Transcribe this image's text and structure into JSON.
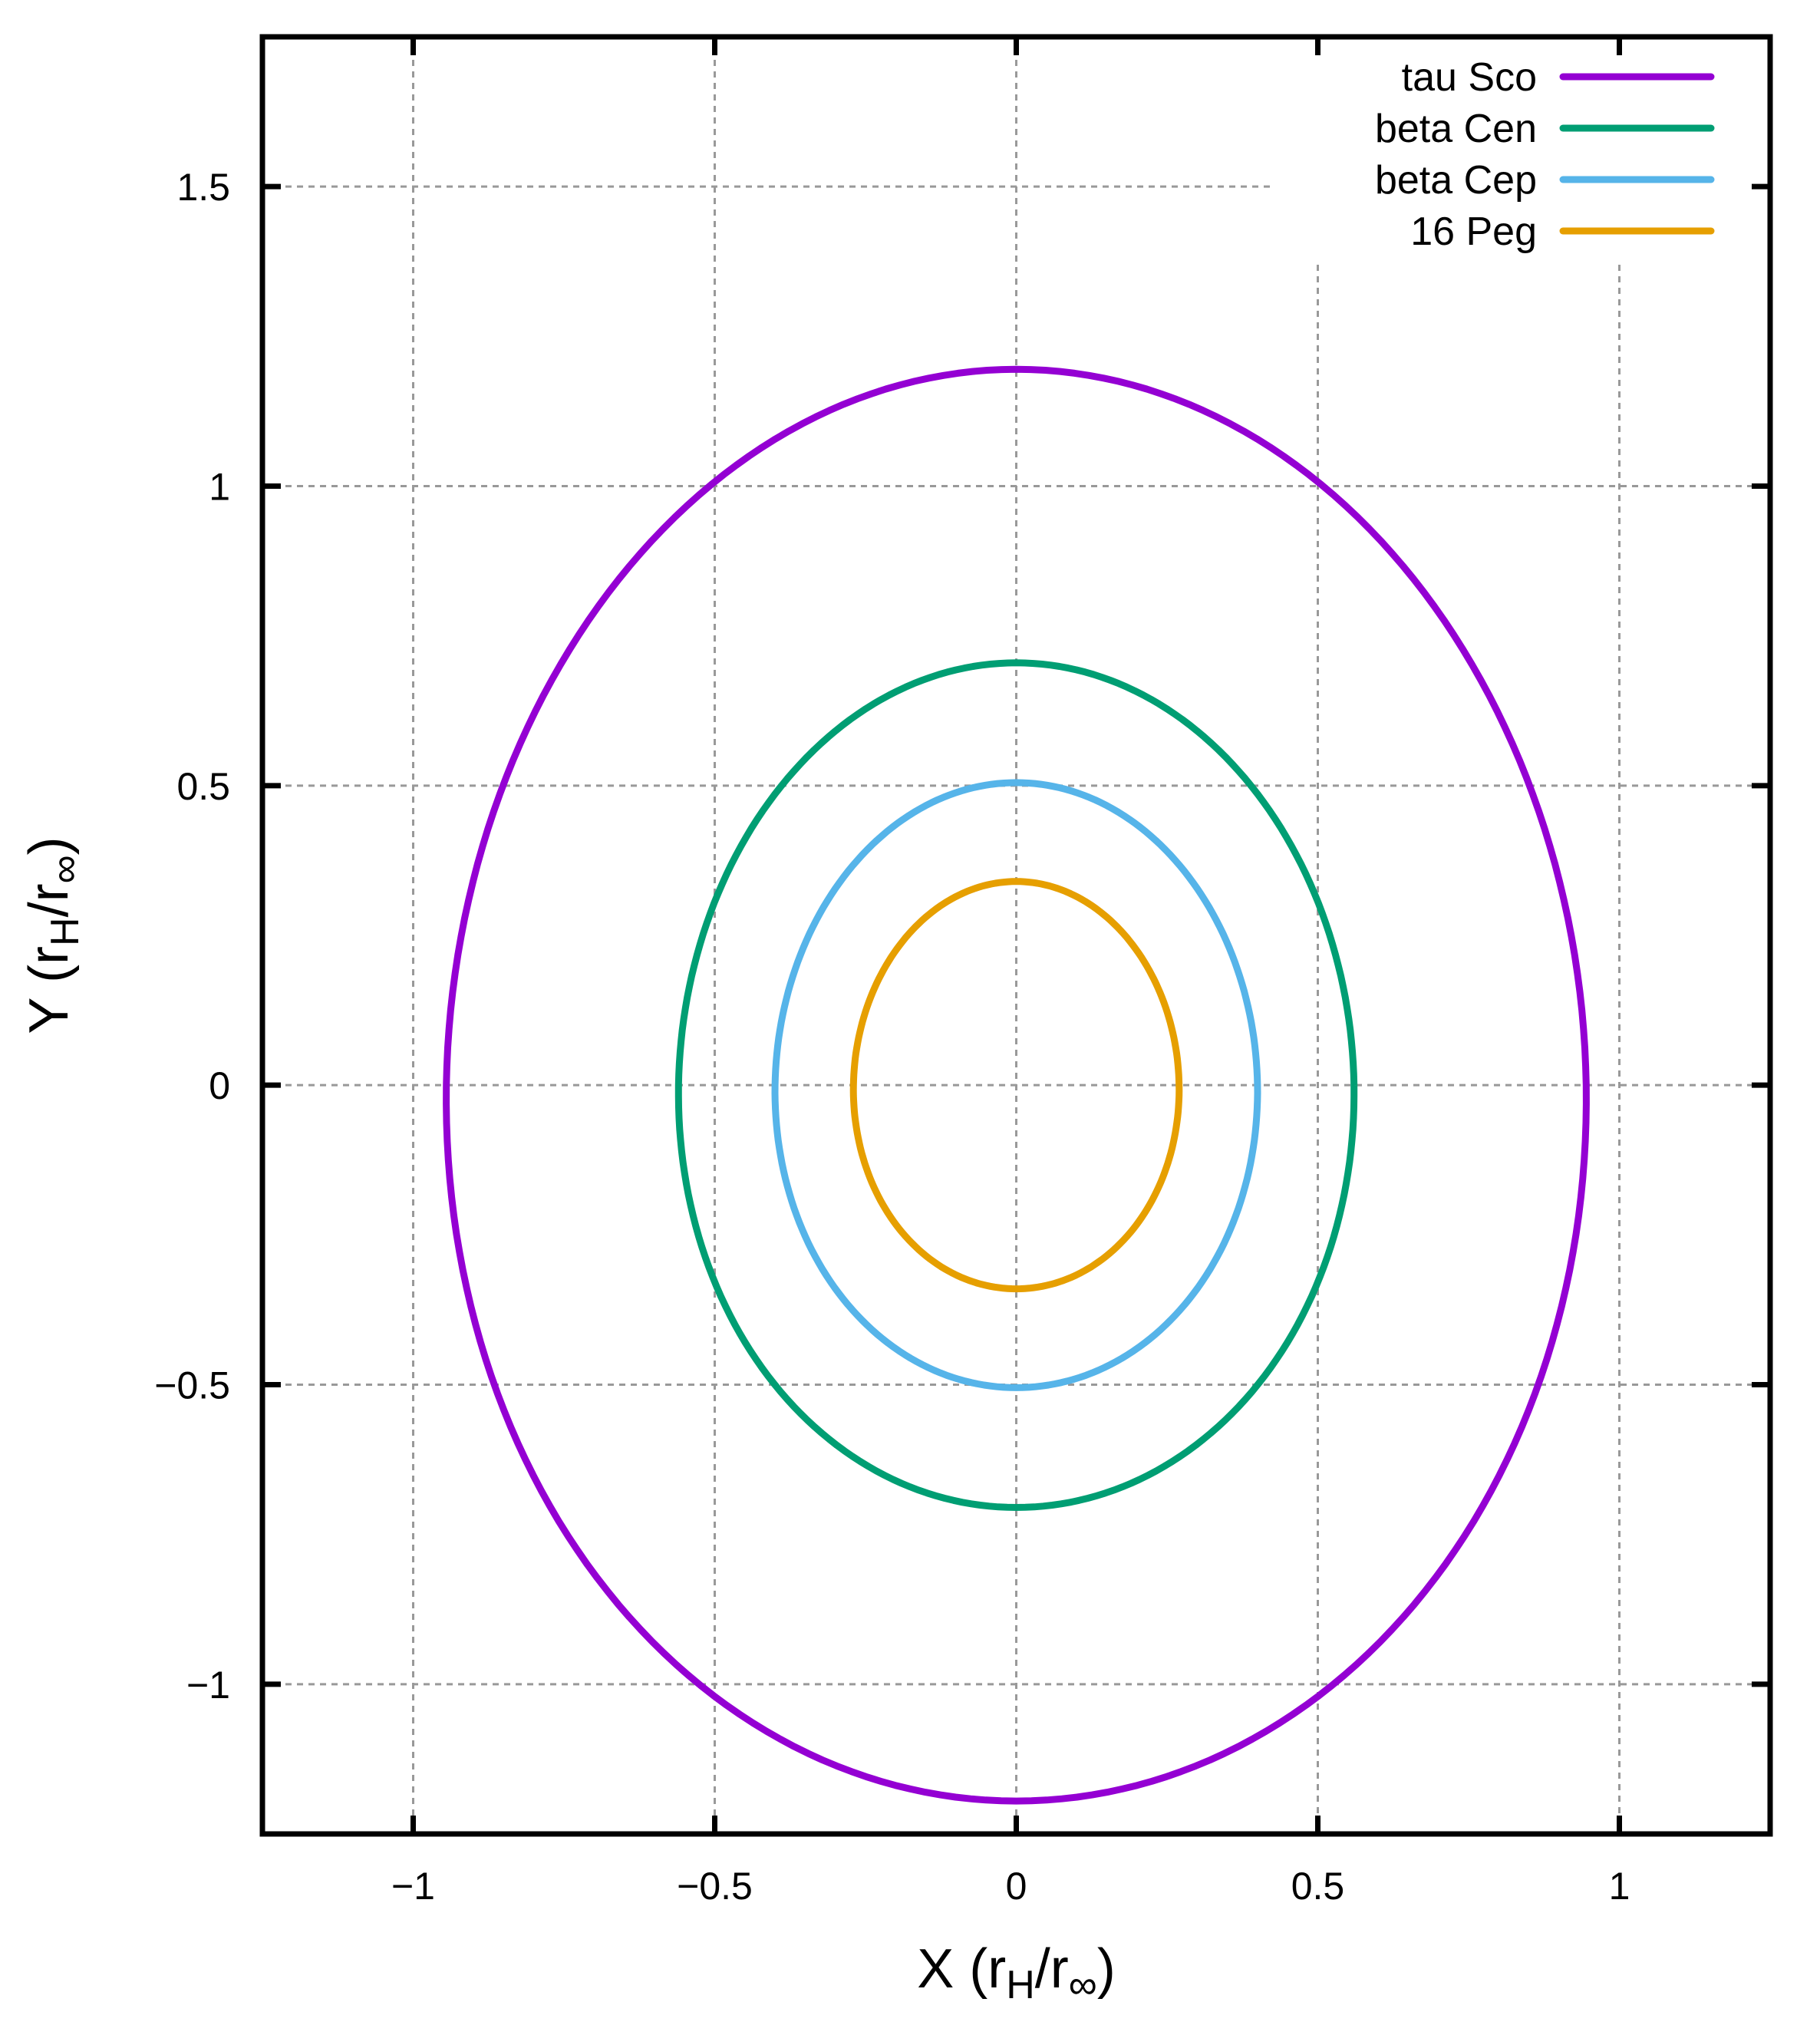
{
  "chart_data": {
    "type": "line",
    "xlabel": {
      "prefix": "X (r",
      "sub1": "H",
      "mid": "/r",
      "sub2": "∞",
      "suffix": ")"
    },
    "ylabel": {
      "prefix": "Y (r",
      "sub1": "H",
      "mid": "/r",
      "sub2": "∞",
      "suffix": ")"
    },
    "xlim": [
      -1.25,
      1.25
    ],
    "ylim": [
      -1.25,
      1.75
    ],
    "grid": true,
    "legend_position": "top-right",
    "x_ticks": [
      {
        "value": -1,
        "label": "−1"
      },
      {
        "value": -0.5,
        "label": "−0.5"
      },
      {
        "value": 0,
        "label": "0"
      },
      {
        "value": 0.5,
        "label": "0.5"
      },
      {
        "value": 1,
        "label": "1"
      }
    ],
    "y_ticks": [
      {
        "value": -1,
        "label": "−1"
      },
      {
        "value": -0.5,
        "label": "−0.5"
      },
      {
        "value": 0,
        "label": "0"
      },
      {
        "value": 0.5,
        "label": "0.5"
      },
      {
        "value": 1,
        "label": "1"
      },
      {
        "value": 1.5,
        "label": "1.5"
      }
    ],
    "series": [
      {
        "name": "tau Sco",
        "color": "#9400d3",
        "x_half_width": 0.945,
        "y_top": 1.195,
        "y_bottom": -1.195
      },
      {
        "name": "beta Cen",
        "color": "#009e73",
        "x_half_width": 0.56,
        "y_top": 0.705,
        "y_bottom": -0.705
      },
      {
        "name": "beta Cep",
        "color": "#56b4e9",
        "x_half_width": 0.4,
        "y_top": 0.505,
        "y_bottom": -0.505
      },
      {
        "name": "16 Peg",
        "color": "#e69f00",
        "x_half_width": 0.27,
        "y_top": 0.34,
        "y_bottom": -0.34
      }
    ]
  }
}
